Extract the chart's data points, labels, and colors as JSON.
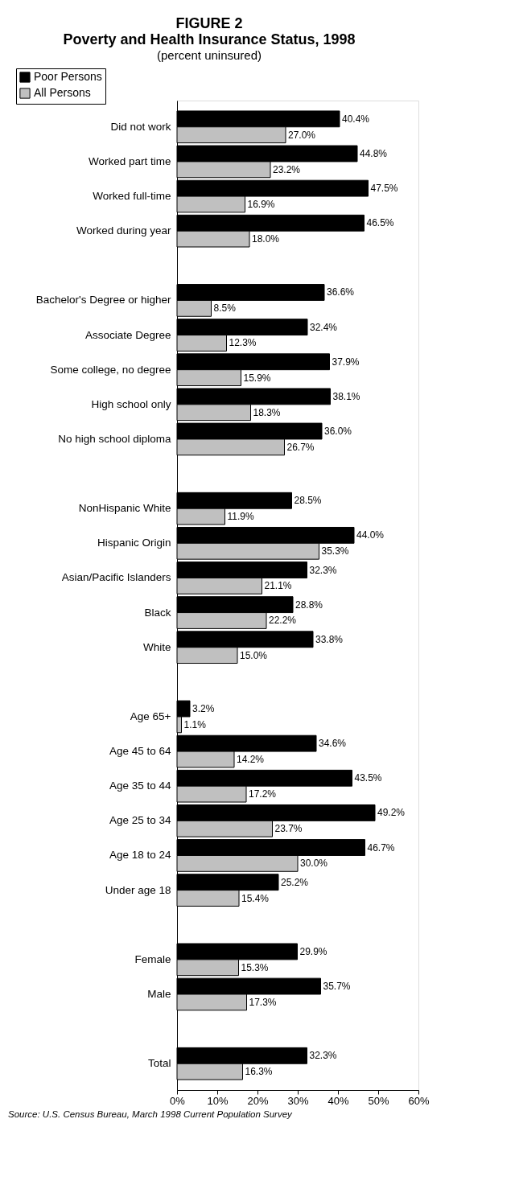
{
  "chart_data": {
    "type": "bar",
    "orientation": "horizontal",
    "title": "FIGURE 2",
    "subtitle": "Poverty and Health Insurance Status, 1998",
    "annotations": [
      "(percent uninsured)",
      "Source: U.S. Census Bureau, March 1998 Current Population Survey"
    ],
    "categories": [
      "Did not work",
      "Worked part time",
      "Worked full-time",
      "Worked during year",
      null,
      "Bachelor's Degree or higher",
      "Associate Degree",
      "Some college, no degree",
      "High school only",
      "No high school diploma",
      null,
      "NonHispanic White",
      "Hispanic Origin",
      "Asian/Pacific Islanders",
      "Black",
      "White",
      null,
      "Age 65+",
      "Age 45 to 64",
      "Age 35 to 44",
      "Age 25 to 34",
      "Age 18 to 24",
      "Under age 18",
      null,
      "Female",
      "Male",
      null,
      "Total"
    ],
    "series": [
      {
        "name": "Poor Persons",
        "color": "#000000",
        "values": [
          40.4,
          44.8,
          47.5,
          46.5,
          null,
          36.6,
          32.4,
          37.9,
          38.1,
          36.0,
          null,
          28.5,
          44.0,
          32.3,
          28.8,
          33.8,
          null,
          3.2,
          34.6,
          43.5,
          49.2,
          46.7,
          25.2,
          null,
          29.9,
          35.7,
          null,
          32.3
        ],
        "value_labels": [
          "40.4%",
          "44.8%",
          "47.5%",
          "46.5%",
          null,
          "36.6%",
          "32.4%",
          "37.9%",
          "38.1%",
          "36.0%",
          null,
          "28.5%",
          "44.0%",
          "32.3%",
          "28.8%",
          "33.8%",
          null,
          "3.2%",
          "34.6%",
          "43.5%",
          "49.2%",
          "46.7%",
          "25.2%",
          null,
          "29.9%",
          "35.7%",
          null,
          "32.3%"
        ]
      },
      {
        "name": "All Persons",
        "color": "#c0c0c0",
        "values": [
          27.0,
          23.2,
          16.9,
          18.0,
          null,
          8.5,
          12.3,
          15.9,
          18.3,
          26.7,
          null,
          11.9,
          35.3,
          21.1,
          22.2,
          15.0,
          null,
          1.1,
          14.2,
          17.2,
          23.7,
          30.0,
          15.4,
          null,
          15.3,
          17.3,
          null,
          16.3
        ],
        "value_labels": [
          "27.0%",
          "23.2%",
          "16.9%",
          "18.0%",
          null,
          "8.5%",
          "12.3%",
          "15.9%",
          "18.3%",
          "26.7%",
          null,
          "11.9%",
          "35.3%",
          "21.1%",
          "22.2%",
          "15.0%",
          null,
          "1.1%",
          "14.2%",
          "17.2%",
          "23.7%",
          "30.0%",
          "15.4%",
          null,
          "15.3%",
          "17.3%",
          null,
          "16.3%"
        ]
      }
    ],
    "xlim": [
      0,
      60
    ],
    "xticks": [
      {
        "value": 0,
        "label": "0%"
      },
      {
        "value": 10,
        "label": "10%"
      },
      {
        "value": 20,
        "label": "20%"
      },
      {
        "value": 30,
        "label": "30%"
      },
      {
        "value": 40,
        "label": "40%"
      },
      {
        "value": 50,
        "label": "50%"
      },
      {
        "value": 60,
        "label": "60%"
      }
    ],
    "grid": false,
    "legend": "top left"
  }
}
